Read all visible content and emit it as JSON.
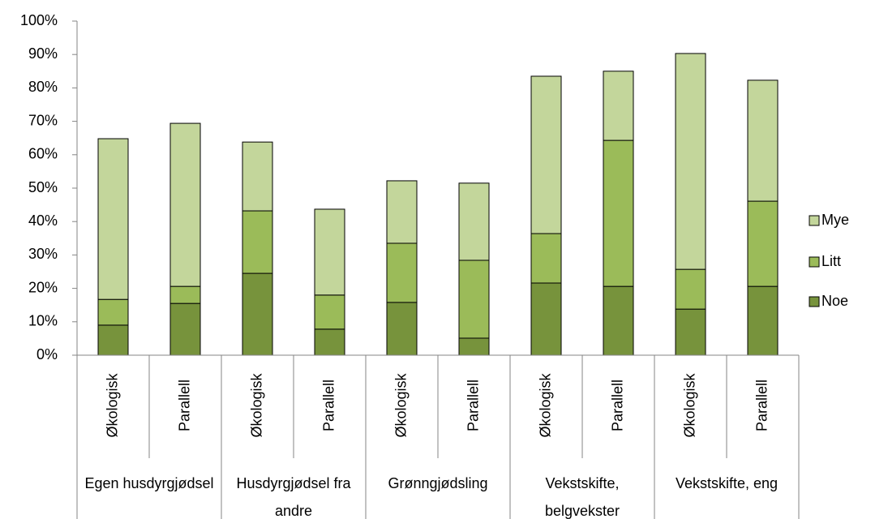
{
  "chart_data": {
    "type": "bar",
    "stacked": true,
    "categories": [
      "Økologisk",
      "Parallell",
      "Økologisk",
      "Parallell",
      "Økologisk",
      "Parallell",
      "Økologisk",
      "Parallell",
      "Økologisk",
      "Parallell"
    ],
    "groups": [
      "Egen husdyrgjødsel",
      "Husdyrgjødsel fra andre",
      "Grønngjødsling",
      "Vekstskifte, belgvekster",
      "Vekstskifte, eng"
    ],
    "series": [
      {
        "name": "Noe",
        "color": "#77933c",
        "values": [
          9.0,
          15.5,
          24.5,
          7.8,
          15.8,
          5.1,
          21.6,
          20.6,
          13.8,
          20.6
        ]
      },
      {
        "name": "Litt",
        "color": "#9bbb59",
        "values": [
          7.7,
          5.1,
          18.7,
          10.2,
          17.7,
          23.3,
          14.8,
          43.7,
          11.9,
          25.5
        ]
      },
      {
        "name": "Mye",
        "color": "#c3d69b",
        "values": [
          48.1,
          48.8,
          20.6,
          25.7,
          18.7,
          23.1,
          47.1,
          20.7,
          64.6,
          36.2
        ]
      }
    ],
    "ylim": [
      0,
      100
    ],
    "yticks": [
      {
        "value": 0,
        "label": "0%"
      },
      {
        "value": 10,
        "label": "10%"
      },
      {
        "value": 20,
        "label": "20%"
      },
      {
        "value": 30,
        "label": "30%"
      },
      {
        "value": 40,
        "label": "40%"
      },
      {
        "value": 50,
        "label": "50%"
      },
      {
        "value": 60,
        "label": "60%"
      },
      {
        "value": 70,
        "label": "70%"
      },
      {
        "value": 80,
        "label": "80%"
      },
      {
        "value": 90,
        "label": "90%"
      },
      {
        "value": 100,
        "label": "100%"
      }
    ],
    "grid": false,
    "legend": "right"
  }
}
